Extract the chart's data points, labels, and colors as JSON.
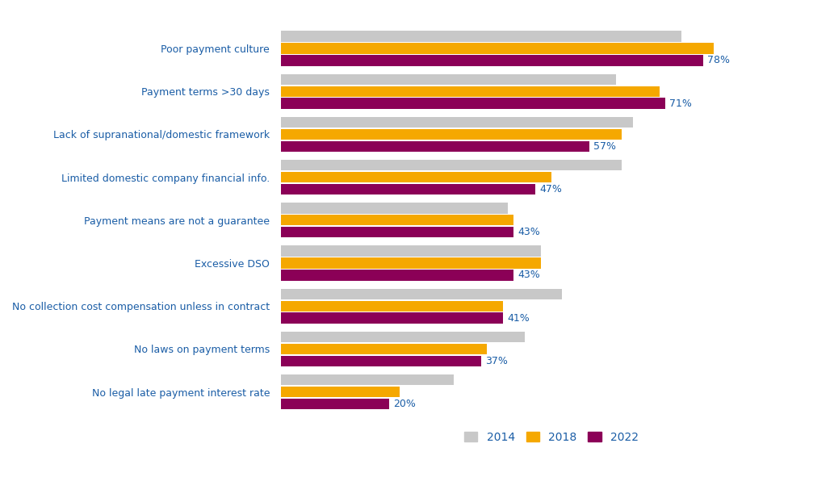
{
  "categories": [
    "Poor payment culture",
    "Payment terms >30 days",
    "Lack of supranational/domestic framework",
    "Limited domestic company financial info.",
    "Payment means are not a guarantee",
    "Excessive DSO",
    "No collection cost compensation unless in contract",
    "No laws on payment terms",
    "No legal late payment interest rate"
  ],
  "values_2014": [
    74,
    62,
    65,
    63,
    42,
    48,
    52,
    45,
    32
  ],
  "values_2018": [
    80,
    70,
    63,
    50,
    43,
    48,
    41,
    38,
    22
  ],
  "values_2022": [
    78,
    71,
    57,
    47,
    43,
    43,
    41,
    37,
    20
  ],
  "color_2014": "#c8c8c8",
  "color_2018": "#f5a800",
  "color_2022": "#8b0057",
  "label_color": "#1a5da6",
  "bar_height": 0.25,
  "xlim": [
    0,
    100
  ],
  "background_color": "#ffffff",
  "legend_labels": [
    "2014",
    "2018",
    "2022"
  ]
}
